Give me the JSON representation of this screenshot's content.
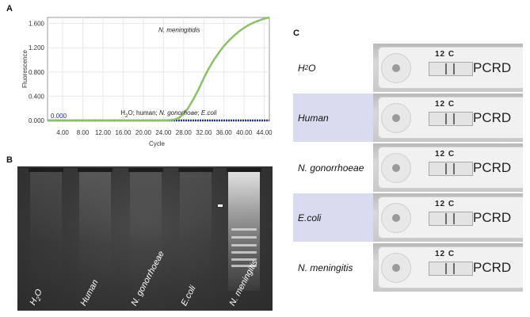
{
  "panels": {
    "a": "A",
    "b": "B",
    "c": "C"
  },
  "chart_data": {
    "type": "line",
    "ylabel": "Fluorescence",
    "xlabel": "Cycle",
    "xlim": [
      1,
      45
    ],
    "ylim": [
      0,
      1.7
    ],
    "y_ticks": [
      "0.000",
      "0.400",
      "0.800",
      "1.200",
      "1.600"
    ],
    "x_ticks": [
      "4.00",
      "8.00",
      "12.00",
      "16.00",
      "20.00",
      "24.00",
      "28.00",
      "32.00",
      "36.00",
      "40.00",
      "44.00"
    ],
    "threshold_label": "0.000",
    "series": [
      {
        "name": "N. meningitidis",
        "color": "#8cc068",
        "x": [
          1,
          4,
          8,
          12,
          16,
          20,
          24,
          26,
          27,
          28,
          29,
          30,
          31,
          32,
          33,
          34,
          35,
          36,
          37,
          38,
          39,
          40,
          41,
          42,
          43,
          44,
          45
        ],
        "y": [
          0,
          0,
          0,
          0,
          0,
          0,
          0,
          0.01,
          0.04,
          0.11,
          0.22,
          0.36,
          0.52,
          0.7,
          0.86,
          1.0,
          1.12,
          1.23,
          1.32,
          1.4,
          1.47,
          1.53,
          1.58,
          1.62,
          1.65,
          1.68,
          1.7
        ]
      },
      {
        "name": "H2O; human; N. gonorhoae; E.coli",
        "color": "#1f2f9a",
        "x": [
          1,
          45
        ],
        "y": [
          0,
          0
        ]
      }
    ],
    "annotations": [
      {
        "text": "N. meningitidis",
        "x": 23,
        "y": 1.46
      },
      {
        "text_parts": [
          "H",
          "2",
          "O; human; ",
          "N. gonorhoae",
          "; ",
          "E.coli"
        ],
        "x": 15.5,
        "y": 0.09
      }
    ]
  },
  "gel": {
    "lanes": [
      "H2O",
      "Human",
      "N. gonorrhoeae",
      "E.coli",
      "N. meningitis"
    ],
    "lane_label_html": [
      "H",
      "2",
      "O"
    ]
  },
  "table": {
    "rows": [
      {
        "label": "H2O",
        "code": "12 C",
        "brand": "PCRD",
        "bg": "#ffffff"
      },
      {
        "label": "Human",
        "code": "12 C",
        "brand": "PCRD",
        "bg": "#d9dcef"
      },
      {
        "label": "N. gonorrhoeae",
        "code": "12 C",
        "brand": "PCRD",
        "bg": "#ffffff"
      },
      {
        "label": "E.coli",
        "code": "12 C",
        "brand": "PCRD",
        "bg": "#d9dcef"
      },
      {
        "label": "N. meningitis",
        "code": "12 C",
        "brand": "PCRD",
        "bg": "#ffffff"
      }
    ]
  }
}
